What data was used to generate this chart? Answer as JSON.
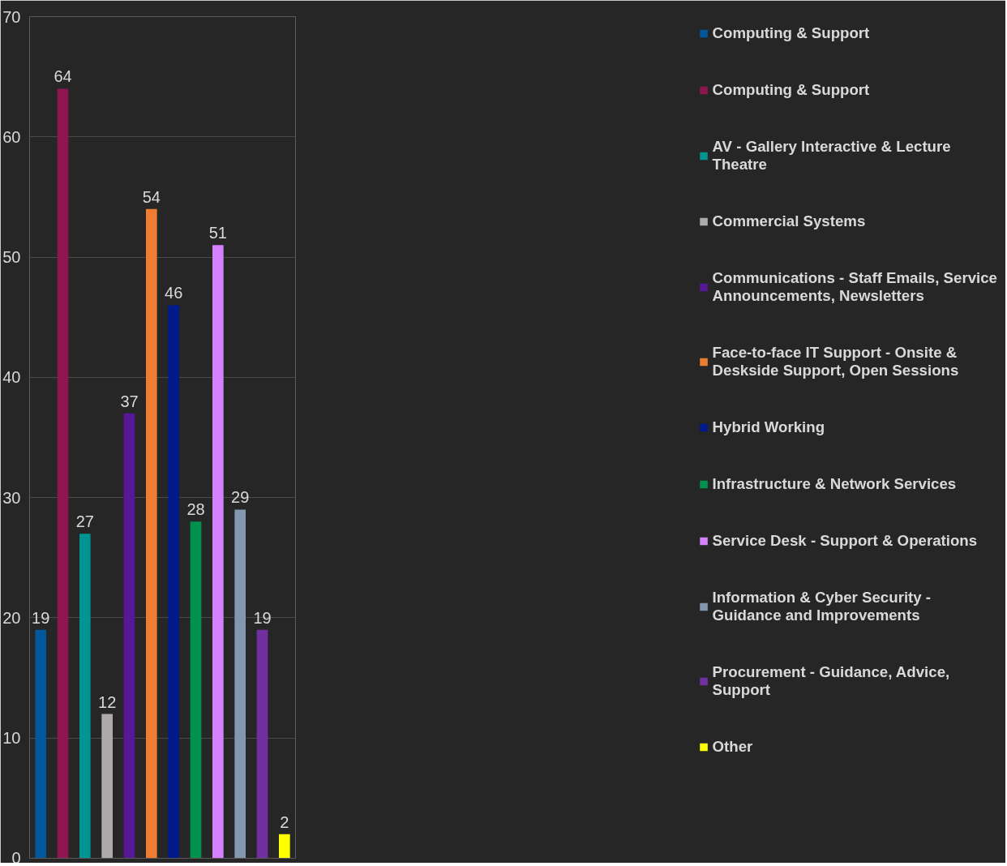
{
  "chart_data": {
    "type": "bar",
    "categories": [
      null,
      null,
      null,
      null,
      null,
      null,
      null,
      null,
      null,
      null,
      null,
      null
    ],
    "series": [
      {
        "name": "Computing & Support",
        "color": "#01579b",
        "values": [
          19,
          null,
          null,
          null,
          null,
          null,
          null,
          null,
          null,
          null,
          null,
          null
        ]
      },
      {
        "name": "Computing & Support",
        "color": "#8e1650",
        "values": [
          null,
          64,
          null,
          null,
          null,
          null,
          null,
          null,
          null,
          null,
          null,
          null
        ]
      },
      {
        "name": "AV - Gallery Interactive & Lecture Theatre",
        "color": "#009592",
        "values": [
          null,
          null,
          27,
          null,
          null,
          null,
          null,
          null,
          null,
          null,
          null,
          null
        ]
      },
      {
        "name": "Commercial Systems",
        "color": "#aeaaaa",
        "values": [
          null,
          null,
          null,
          12,
          null,
          null,
          null,
          null,
          null,
          null,
          null,
          null
        ]
      },
      {
        "name": "Communications - Staff Emails, Service Announcements, Newsletters",
        "color": "#561895",
        "values": [
          null,
          null,
          null,
          null,
          37,
          null,
          null,
          null,
          null,
          null,
          null,
          null
        ]
      },
      {
        "name": "Face-to-face IT Support - Onsite & Deskside Support, Open Sessions",
        "color": "#ed7d31",
        "values": [
          null,
          null,
          null,
          null,
          null,
          54,
          null,
          null,
          null,
          null,
          null,
          null
        ]
      },
      {
        "name": "Hybrid Working",
        "color": "#001a8c",
        "values": [
          null,
          null,
          null,
          null,
          null,
          null,
          46,
          null,
          null,
          null,
          null,
          null
        ]
      },
      {
        "name": "Infrastructure & Network Services",
        "color": "#00914f",
        "values": [
          null,
          null,
          null,
          null,
          null,
          null,
          null,
          28,
          null,
          null,
          null,
          null
        ]
      },
      {
        "name": "Service Desk - Support & Operations",
        "color": "#d580ff",
        "values": [
          null,
          null,
          null,
          null,
          null,
          null,
          null,
          null,
          51,
          null,
          null,
          null
        ]
      },
      {
        "name": "Information & Cyber Security - Guidance and Improvements",
        "color": "#8497b0",
        "values": [
          null,
          null,
          null,
          null,
          null,
          null,
          null,
          null,
          null,
          29,
          null,
          null
        ]
      },
      {
        "name": "Procurement - Guidance, Advice, Support",
        "color": "#7030a0",
        "values": [
          null,
          null,
          null,
          null,
          null,
          null,
          null,
          null,
          null,
          null,
          19,
          null
        ]
      },
      {
        "name": "Other",
        "color": "#ffff00",
        "values": [
          null,
          null,
          null,
          null,
          null,
          null,
          null,
          null,
          null,
          null,
          null,
          2
        ]
      }
    ],
    "ylim": [
      0,
      70
    ],
    "yticks": [
      0,
      10,
      20,
      30,
      40,
      50,
      60,
      70
    ],
    "grid": "y",
    "legend": "right",
    "tick_labels": "y",
    "data_labels": true
  }
}
